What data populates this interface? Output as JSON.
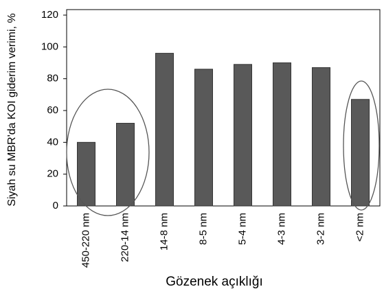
{
  "chart_data": {
    "type": "bar",
    "categories": [
      "450-220 nm",
      "220-14 nm",
      "14-8 nm",
      "8-5 nm",
      "5-4 nm",
      "4-3 nm",
      "3-2 nm",
      "<2 nm"
    ],
    "values": [
      40,
      52,
      96,
      86,
      89,
      90,
      87,
      67
    ],
    "color": "#595959",
    "ylim": [
      0,
      120
    ],
    "yticks": [
      0,
      20,
      40,
      60,
      80,
      100,
      120
    ],
    "y_label": "Siyah su MBR'da KOI giderim verimi, %",
    "x_label": "Gözenek açıklığı",
    "grid": false
  }
}
